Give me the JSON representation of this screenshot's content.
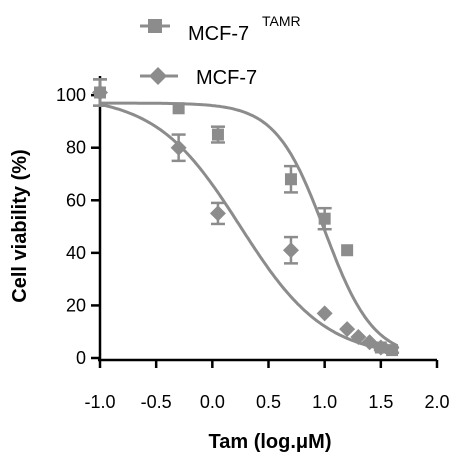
{
  "chart_data": {
    "type": "scatter",
    "title": "",
    "xlabel": "Tam (log.μM)",
    "ylabel": "Cell viability (%)",
    "xlim": [
      -1.0,
      2.0
    ],
    "ylim": [
      0,
      105
    ],
    "x_ticks": [
      "-1.0",
      "-0.5",
      "0.0",
      "0.5",
      "1.0",
      "1.5",
      "2.0"
    ],
    "y_ticks": [
      "0",
      "20",
      "40",
      "60",
      "80",
      "100"
    ],
    "grid": false,
    "legend_position": "top",
    "series": [
      {
        "name": "MCF-7",
        "name_sup": "TAMR",
        "marker": "square",
        "color": "#8c8c8c",
        "x": [
          -1.0,
          -0.3,
          0.05,
          0.7,
          1.0,
          1.2,
          1.5,
          1.6
        ],
        "y": [
          101,
          95,
          85,
          68,
          53,
          41,
          4,
          3
        ],
        "err": [
          5,
          0,
          3,
          5,
          4,
          0,
          1,
          1
        ],
        "fit": {
          "top": 97,
          "bottom": 0,
          "logIC50": 1.0,
          "hill": -2.0
        }
      },
      {
        "name": "MCF-7",
        "name_sup": "",
        "marker": "diamond",
        "color": "#8c8c8c",
        "x": [
          -1.0,
          -0.3,
          0.05,
          0.7,
          1.0,
          1.2,
          1.3,
          1.4,
          1.5
        ],
        "y": [
          101,
          80,
          55,
          41,
          17,
          11,
          8,
          6,
          4
        ],
        "err": [
          5,
          5,
          4,
          5,
          0,
          0,
          0,
          0,
          0
        ],
        "fit": {
          "top": 100,
          "bottom": 0,
          "logIC50": 0.25,
          "hill": -1.15
        }
      }
    ]
  }
}
